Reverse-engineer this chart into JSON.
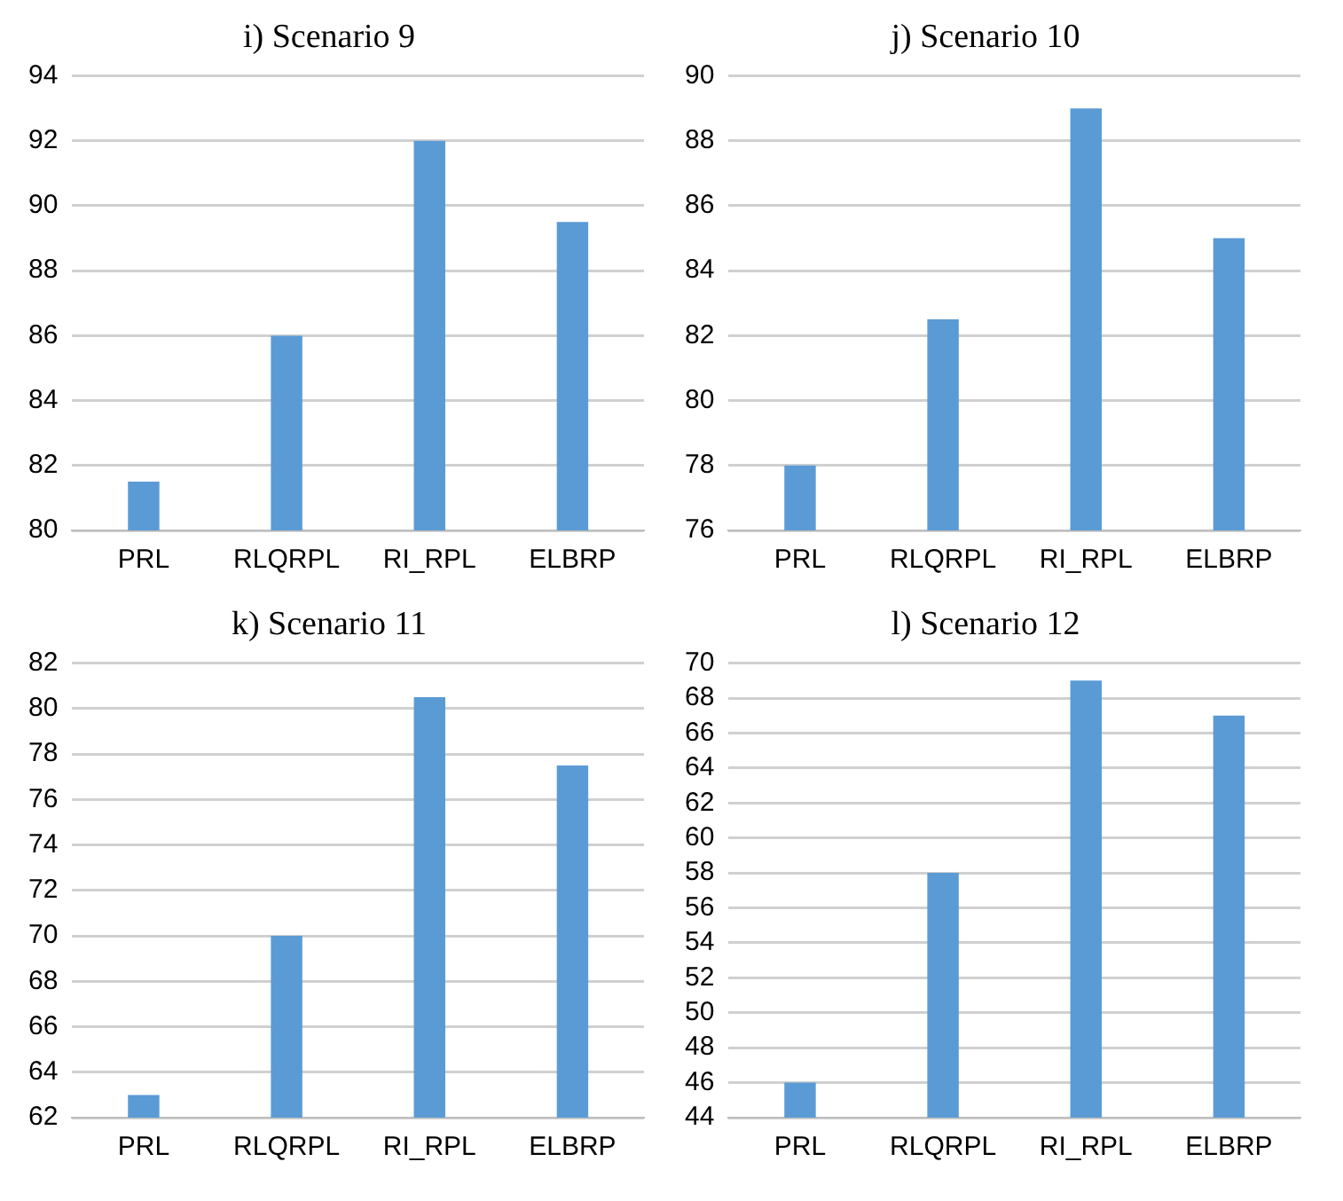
{
  "chart_data": [
    {
      "type": "bar",
      "title": "i) Scenario 9",
      "categories": [
        "PRL",
        "RLQRPL",
        "RI_RPL",
        "ELBRP"
      ],
      "values": [
        81.5,
        86,
        92,
        89.5
      ],
      "color": "#5b9bd5",
      "ylim": [
        80,
        94
      ],
      "yticks": [
        80,
        82,
        84,
        86,
        88,
        90,
        92,
        94
      ],
      "grid": "y"
    },
    {
      "type": "bar",
      "title": "j) Scenario 10",
      "categories": [
        "PRL",
        "RLQRPL",
        "RI_RPL",
        "ELBRP"
      ],
      "values": [
        78,
        82.5,
        89,
        85
      ],
      "color": "#5b9bd5",
      "ylim": [
        76,
        90
      ],
      "yticks": [
        76,
        78,
        80,
        82,
        84,
        86,
        88,
        90
      ],
      "grid": "y"
    },
    {
      "type": "bar",
      "title": "k) Scenario 11",
      "categories": [
        "PRL",
        "RLQRPL",
        "RI_RPL",
        "ELBRP"
      ],
      "values": [
        63,
        70,
        80.5,
        77.5
      ],
      "color": "#5b9bd5",
      "ylim": [
        62,
        82
      ],
      "yticks": [
        62,
        64,
        66,
        68,
        70,
        72,
        74,
        76,
        78,
        80,
        82
      ],
      "grid": "y"
    },
    {
      "type": "bar",
      "title": "l) Scenario 12",
      "categories": [
        "PRL",
        "RLQRPL",
        "RI_RPL",
        "ELBRP"
      ],
      "values": [
        46,
        58,
        69,
        67
      ],
      "color": "#5b9bd5",
      "ylim": [
        44,
        70
      ],
      "yticks": [
        44,
        46,
        48,
        50,
        52,
        54,
        56,
        58,
        60,
        62,
        64,
        66,
        68,
        70
      ],
      "grid": "y"
    }
  ]
}
